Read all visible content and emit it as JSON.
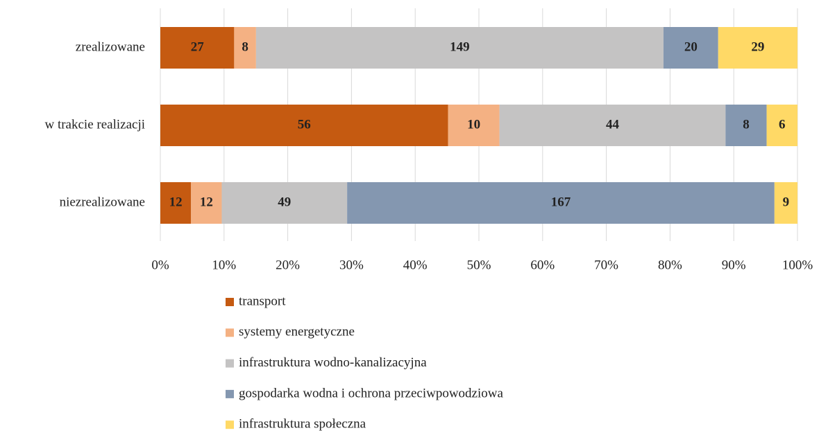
{
  "chart_data": {
    "type": "bar",
    "orientation": "horizontal",
    "stacking": "percent",
    "categories": [
      "zrealizowane",
      "w trakcie realizacji",
      "niezrealizowane"
    ],
    "series": [
      {
        "name": "transport",
        "color": "#c55a11",
        "values": [
          27,
          56,
          12
        ]
      },
      {
        "name": "systemy energetyczne",
        "color": "#f4b183",
        "values": [
          8,
          10,
          12
        ]
      },
      {
        "name": "infrastruktura wodno-kanalizacyjna",
        "color": "#c4c3c3",
        "values": [
          149,
          44,
          49
        ]
      },
      {
        "name": "gospodarka wodna i ochrona przeciwpowodziowa",
        "color": "#8497b0",
        "values": [
          20,
          8,
          167
        ]
      },
      {
        "name": "infrastruktura społeczna",
        "color": "#ffd966",
        "values": [
          29,
          6,
          9
        ]
      }
    ],
    "xlim": [
      0,
      100
    ],
    "xticks": [
      {
        "value": 0,
        "label": "0%"
      },
      {
        "value": 10,
        "label": "10%"
      },
      {
        "value": 20,
        "label": "20%"
      },
      {
        "value": 30,
        "label": "30%"
      },
      {
        "value": 40,
        "label": "40%"
      },
      {
        "value": 50,
        "label": "50%"
      },
      {
        "value": 60,
        "label": "60%"
      },
      {
        "value": 70,
        "label": "70%"
      },
      {
        "value": 80,
        "label": "80%"
      },
      {
        "value": 90,
        "label": "90%"
      },
      {
        "value": 100,
        "label": "100%"
      }
    ],
    "grid": true,
    "legend": "bottom"
  }
}
